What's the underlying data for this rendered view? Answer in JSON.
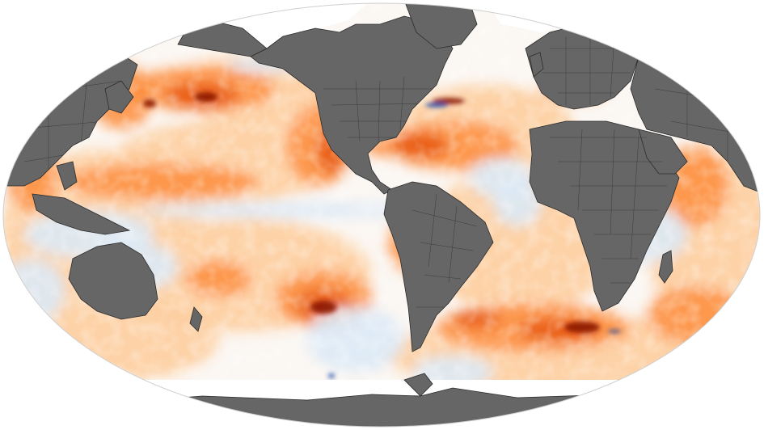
{
  "map": {
    "projection": "winkel-tripel-like",
    "colors": {
      "background": "#ffffff",
      "land": "#666666",
      "border": "#2b2b2b",
      "ice": "#ffffff",
      "ocean_neutral": "#fbf7f3",
      "warm_light": "#fdd0a2",
      "warm_mid": "#fd8d3c",
      "warm_strong": "#e6550d",
      "warm_extreme": "#8c1a04",
      "cool_light": "#dbe9f6",
      "cool_mid": "#9ecae1",
      "cool_strong": "#2150a8"
    }
  }
}
